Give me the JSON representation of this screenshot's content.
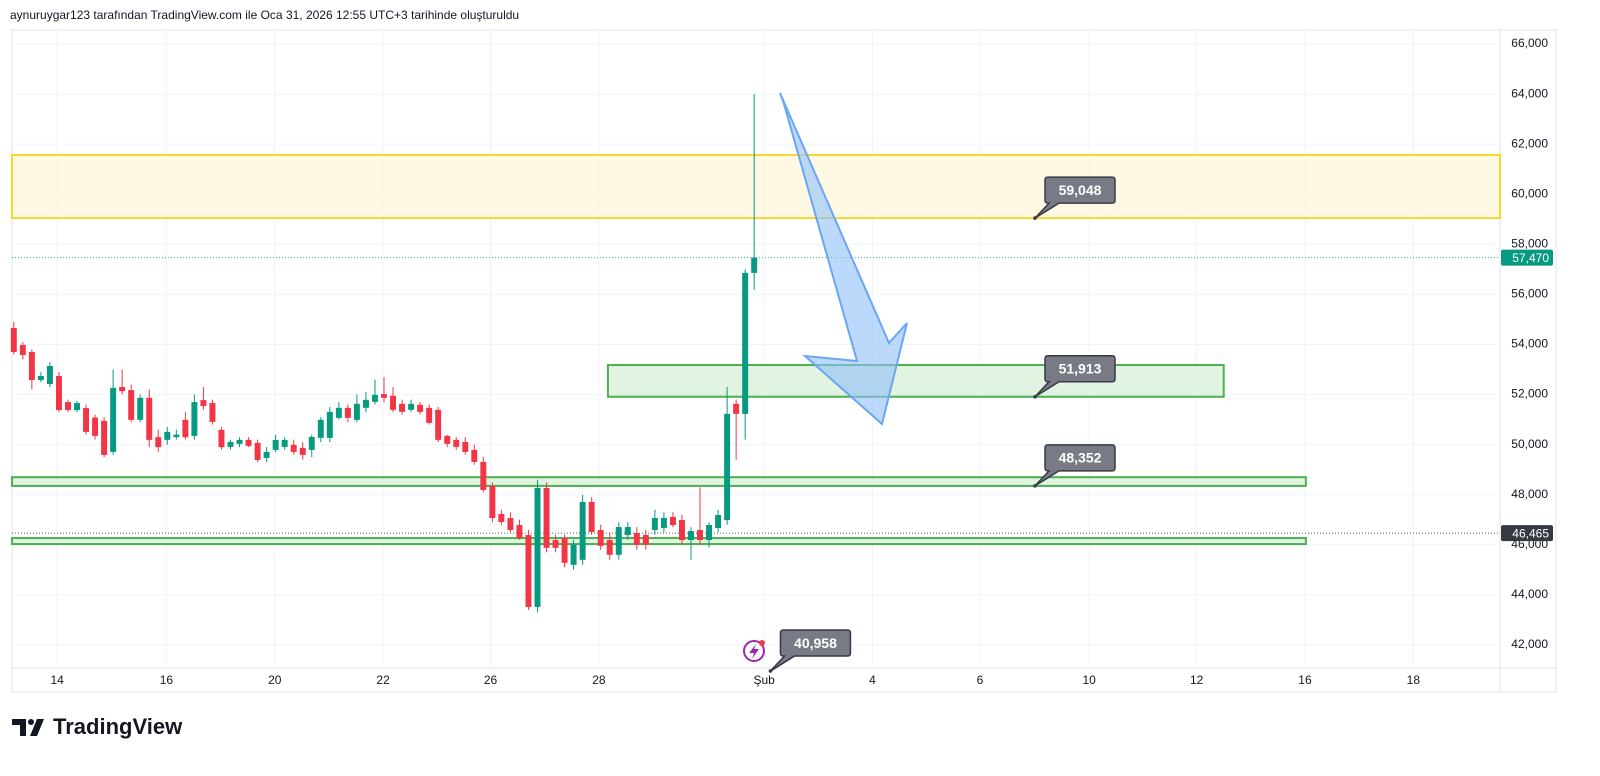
{
  "header": {
    "attribution": "aynuruygar123 tarafından TradingView.com ile Oca 31, 2026 12:55 UTC+3 tarihinde oluşturuldu"
  },
  "footer": {
    "logo": "TradingView"
  },
  "chart_data": {
    "type": "candlestick",
    "up_color": "#089981",
    "down_color": "#f23645",
    "grid": true,
    "ylim": [
      41080,
      66560
    ],
    "yticks": [
      {
        "value": 42000,
        "label": "42,000"
      },
      {
        "value": 44000,
        "label": "44,000"
      },
      {
        "value": 46000,
        "label": "46,000"
      },
      {
        "value": 48000,
        "label": "48,000"
      },
      {
        "value": 50000,
        "label": "50,000"
      },
      {
        "value": 52000,
        "label": "52,000"
      },
      {
        "value": 54000,
        "label": "54,000"
      },
      {
        "value": 56000,
        "label": "56,000"
      },
      {
        "value": 58000,
        "label": "58,000"
      },
      {
        "value": 60000,
        "label": "60,000"
      },
      {
        "value": 62000,
        "label": "62,000"
      },
      {
        "value": 64000,
        "label": "64,000"
      },
      {
        "value": 66000,
        "label": "66,000"
      }
    ],
    "xlim": [
      -0.2,
      164.6
    ],
    "xticks": [
      {
        "value": 4.8,
        "label": "14"
      },
      {
        "value": 16.9,
        "label": "16"
      },
      {
        "value": 28.9,
        "label": "20"
      },
      {
        "value": 40.9,
        "label": "22"
      },
      {
        "value": 52.8,
        "label": "26"
      },
      {
        "value": 64.8,
        "label": "28"
      },
      {
        "value": 83.1,
        "label": "Şub"
      },
      {
        "value": 95.1,
        "label": "4"
      },
      {
        "value": 107,
        "label": "6"
      },
      {
        "value": 119.1,
        "label": "10"
      },
      {
        "value": 131,
        "label": "12"
      },
      {
        "value": 143,
        "label": "16"
      },
      {
        "value": 155,
        "label": "18"
      }
    ],
    "x": [
      0,
      1,
      2,
      3,
      4,
      5,
      6,
      7,
      8,
      9,
      10,
      11,
      12,
      13,
      14,
      15,
      16,
      17,
      18,
      19,
      20,
      21,
      22,
      23,
      24,
      25,
      26,
      27,
      28,
      29,
      30,
      31,
      32,
      33,
      34,
      35,
      36,
      37,
      38,
      39,
      40,
      41,
      42,
      43,
      44,
      45,
      46,
      47,
      48,
      49,
      50,
      51,
      52,
      53,
      54,
      55,
      56,
      57,
      58,
      59,
      60,
      61,
      62,
      63,
      64,
      65,
      66,
      67,
      68,
      69,
      70,
      71,
      72,
      73,
      74,
      75,
      76,
      77,
      78,
      79,
      80,
      81,
      82
    ],
    "open": [
      54660,
      53980,
      53700,
      52580,
      52420,
      52740,
      51700,
      51380,
      51460,
      51080,
      50950,
      49710,
      52300,
      52180,
      50990,
      51870,
      50300,
      50190,
      50300,
      50990,
      50350,
      51780,
      51660,
      50590,
      49910,
      50030,
      50190,
      50070,
      49470,
      49790,
      49910,
      49990,
      49870,
      49790,
      50270,
      50270,
      51070,
      51470,
      50990,
      51470,
      51710,
      52020,
      51950,
      51630,
      51390,
      51590,
      51470,
      51390,
      50350,
      50190,
      50110,
      49790,
      49310,
      48350,
      47230,
      47070,
      46790,
      46390,
      43520,
      48270,
      46190,
      46270,
      45200,
      45400,
      47710,
      46590,
      46190,
      45600,
      46390,
      46470,
      46390,
      46590,
      46670,
      47110,
      46990,
      46190,
      46590,
      46190,
      46670,
      46990,
      51630,
      51230,
      56860
    ],
    "high": [
      54900,
      54100,
      53800,
      52900,
      53300,
      52900,
      51800,
      51750,
      51600,
      51200,
      51100,
      53000,
      53000,
      52400,
      52000,
      52200,
      50600,
      50700,
      50600,
      51300,
      52000,
      52300,
      51800,
      50700,
      50200,
      50300,
      50300,
      50200,
      49900,
      50400,
      50300,
      50200,
      50100,
      50400,
      51100,
      51500,
      51700,
      51600,
      52000,
      52100,
      52600,
      52700,
      52300,
      51800,
      51800,
      51700,
      51600,
      51500,
      50400,
      50300,
      50300,
      50000,
      49500,
      48500,
      47400,
      47300,
      47000,
      46600,
      48600,
      48500,
      46400,
      46400,
      46200,
      48000,
      47900,
      46800,
      46500,
      46900,
      46900,
      46700,
      46600,
      47400,
      47300,
      47300,
      47200,
      46700,
      48300,
      46900,
      47400,
      52300,
      51800,
      57000,
      64000
    ],
    "low": [
      53600,
      53400,
      52200,
      52500,
      52300,
      51300,
      51300,
      51300,
      50400,
      50200,
      49500,
      49600,
      52000,
      50900,
      50900,
      49900,
      49700,
      50000,
      50200,
      50200,
      50200,
      51400,
      50800,
      49800,
      49800,
      49900,
      49900,
      49300,
      49300,
      49700,
      49800,
      49600,
      49400,
      49500,
      50100,
      50100,
      51000,
      50900,
      50900,
      51300,
      51600,
      51700,
      51300,
      51200,
      51300,
      51200,
      50800,
      50100,
      49900,
      49800,
      49600,
      49200,
      48100,
      46900,
      46800,
      46500,
      46200,
      43400,
      43300,
      45700,
      45700,
      45100,
      45000,
      45200,
      46400,
      45800,
      45400,
      45400,
      46200,
      45800,
      45800,
      46400,
      46500,
      46700,
      46000,
      45400,
      46000,
      45900,
      46500,
      46800,
      49400,
      50200,
      56180
    ],
    "close": [
      53700,
      53580,
      52580,
      52740,
      53140,
      51380,
      51380,
      51660,
      50510,
      50350,
      49590,
      52270,
      52140,
      50990,
      51870,
      50190,
      49900,
      50510,
      50400,
      50300,
      51700,
      51540,
      50910,
      49900,
      50110,
      50190,
      49950,
      49390,
      49710,
      50190,
      50190,
      49710,
      49590,
      50310,
      50990,
      51310,
      51470,
      51070,
      51630,
      51790,
      51990,
      51870,
      51390,
      51310,
      51630,
      51310,
      50870,
      50190,
      50030,
      49910,
      49710,
      49310,
      48190,
      47070,
      46910,
      46590,
      46270,
      43520,
      48270,
      45880,
      45880,
      45280,
      46000,
      47710,
      46510,
      45960,
      45600,
      46710,
      46710,
      46000,
      46000,
      47070,
      47070,
      46790,
      46190,
      46550,
      46190,
      46790,
      47190,
      51230,
      51230,
      56860,
      57470
    ],
    "zones": [
      {
        "from": 59048,
        "to": 61570,
        "x0": -0.2,
        "x1": 164.6,
        "color": "#f7d630",
        "fill": "#fff7dc"
      },
      {
        "from": 51913,
        "to": 53180,
        "x0": 65.8,
        "x1": 134.0,
        "color": "#4caf50",
        "fill": "#d9f0d9"
      },
      {
        "from": 48352,
        "to": 48700,
        "x0": -0.2,
        "x1": 143.1,
        "color": "#4caf50",
        "fill": "#d9f0d9"
      },
      {
        "from": 46030,
        "to": 46270,
        "x0": -0.2,
        "x1": 143.1,
        "color": "#4caf50",
        "fill": "#d9f0d9"
      }
    ],
    "price_labels": [
      {
        "value": 59048,
        "label": "59,048",
        "x": 113.1
      },
      {
        "value": 51913,
        "label": "51,913",
        "x": 113.1
      },
      {
        "value": 48352,
        "label": "48,352",
        "x": 113.1
      },
      {
        "value": 40958,
        "label": "40,958",
        "x": 83.8
      }
    ],
    "last_price": {
      "value": 57470,
      "label": "57,470",
      "color": "#089981"
    },
    "prev_price": {
      "value": 46465,
      "label": "46,465",
      "color": "#363a45"
    }
  }
}
